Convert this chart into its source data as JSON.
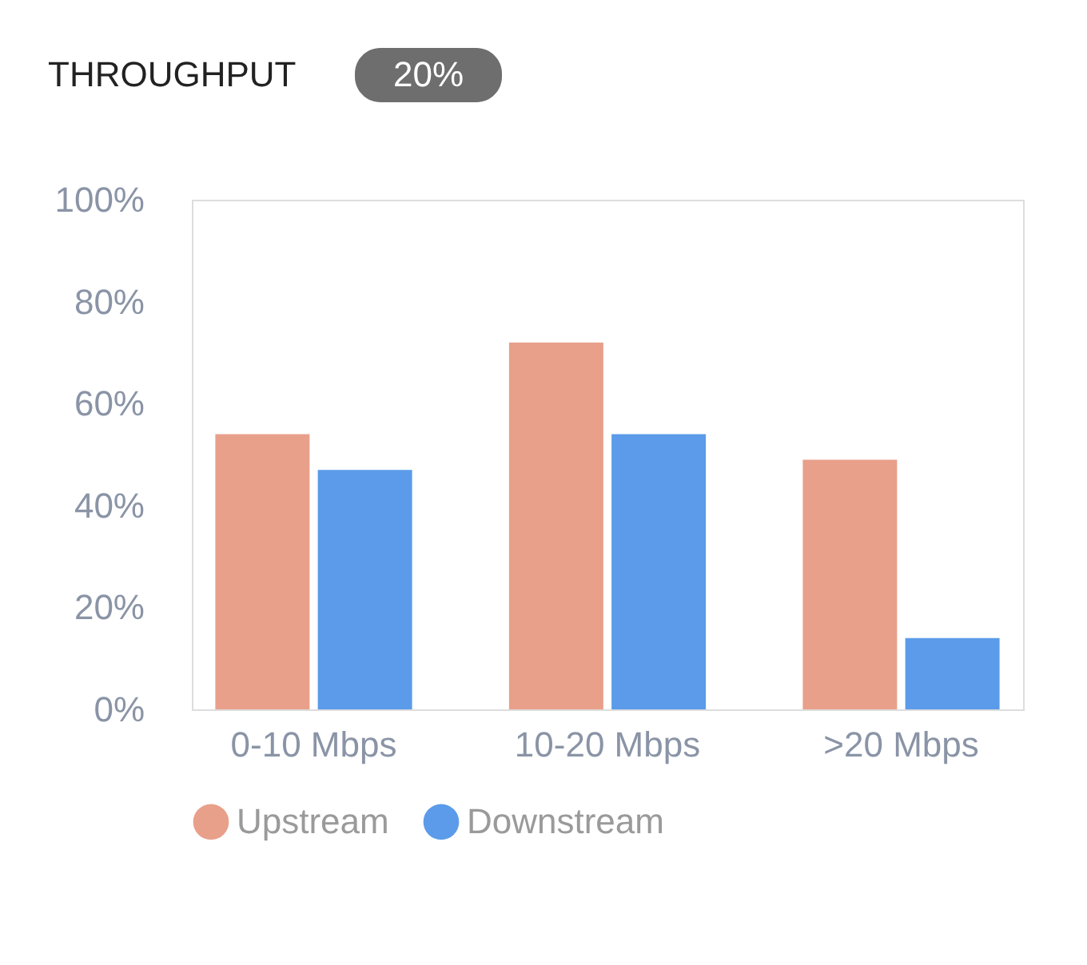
{
  "chart_data": {
    "type": "bar",
    "title": "THROUGHPUT",
    "annotations": [
      "20%"
    ],
    "categories": [
      "0-10 Mbps",
      "10-20 Mbps",
      ">20 Mbps"
    ],
    "series": [
      {
        "name": "Upstream",
        "color": "#e8a08a",
        "values": [
          54,
          72,
          49
        ]
      },
      {
        "name": "Downstream",
        "color": "#5b9be9",
        "values": [
          47,
          54,
          14
        ]
      }
    ],
    "ylim": [
      0,
      100
    ],
    "yticks": [
      {
        "value": 0,
        "label": "0%"
      },
      {
        "value": 20,
        "label": "20%"
      },
      {
        "value": 40,
        "label": "40%"
      },
      {
        "value": 60,
        "label": "60%"
      },
      {
        "value": 80,
        "label": "80%"
      },
      {
        "value": 100,
        "label": "100%"
      }
    ],
    "grid": false,
    "legend": "bottom"
  }
}
